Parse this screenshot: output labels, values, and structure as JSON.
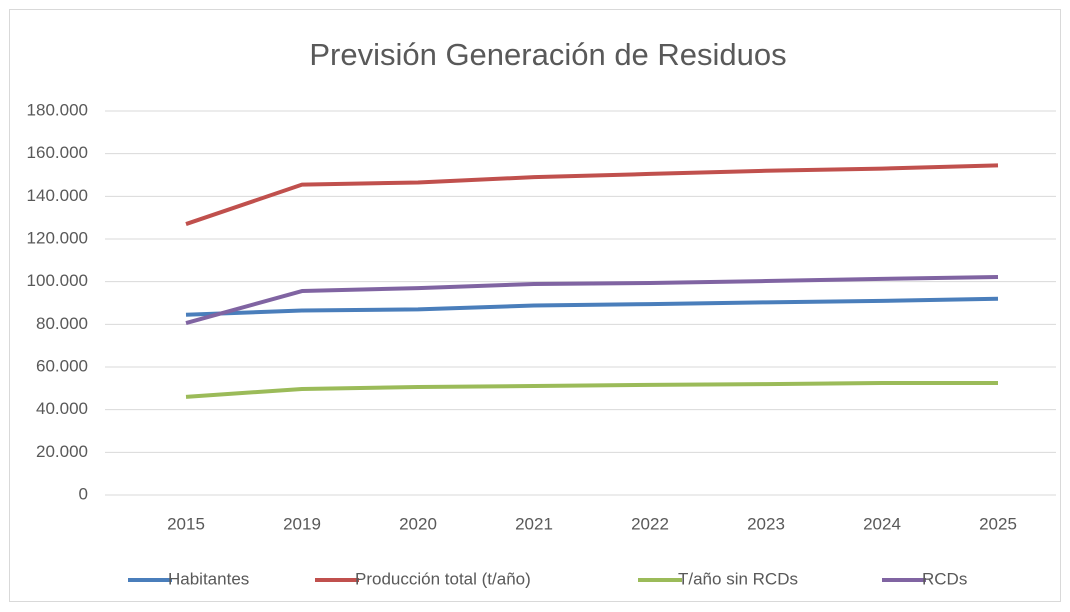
{
  "chart_data": {
    "type": "line",
    "title": "Previsión Generación de Residuos",
    "categories": [
      "2015",
      "2019",
      "2020",
      "2021",
      "2022",
      "2023",
      "2024",
      "2025"
    ],
    "series": [
      {
        "name": "Habitantes",
        "color": "#4a7ebb",
        "values": [
          84500,
          86500,
          87000,
          88800,
          89500,
          90300,
          91000,
          92000
        ]
      },
      {
        "name": "Producción total (t/año)",
        "color": "#c0504d",
        "values": [
          127000,
          145500,
          146500,
          149000,
          150500,
          152000,
          153000,
          154500
        ]
      },
      {
        "name": "T/año sin RCDs",
        "color": "#9bbb59",
        "values": [
          46000,
          49700,
          50600,
          51100,
          51600,
          52000,
          52500,
          52500
        ]
      },
      {
        "name": "RCDs",
        "color": "#8064a2",
        "values": [
          80600,
          95600,
          97000,
          98900,
          99400,
          100300,
          101300,
          102200
        ]
      }
    ],
    "ylim": [
      0,
      180000
    ],
    "yticks": [
      0,
      {
        "value": 20000,
        "label": "20.000"
      },
      {
        "value": 40000,
        "label": "40.000"
      },
      {
        "value": 60000,
        "label": "60.000"
      },
      {
        "value": 80000,
        "label": "80.000"
      },
      {
        "value": 100000,
        "label": "100.000"
      },
      {
        "value": 120000,
        "label": "120.000"
      },
      {
        "value": 140000,
        "label": "140.000"
      },
      {
        "value": 160000,
        "label": "160.000"
      },
      {
        "value": 180000,
        "label": "180.000"
      }
    ],
    "grid": true,
    "legend": "bottom"
  }
}
